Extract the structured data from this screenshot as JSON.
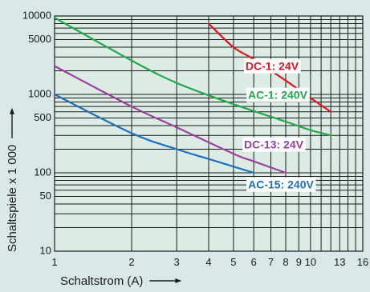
{
  "chart_data": {
    "type": "line",
    "xlabel": "Schaltstrom (A)",
    "ylabel": "Schaltspiele x 1 000",
    "xscale": "log",
    "yscale": "log",
    "xlim": [
      1,
      16
    ],
    "ylim": [
      10,
      10000
    ],
    "x_ticks": [
      {
        "value": 1,
        "label": "1"
      },
      {
        "value": 2,
        "label": "2"
      },
      {
        "value": 3,
        "label": "3"
      },
      {
        "value": 4,
        "label": "4"
      },
      {
        "value": 5,
        "label": "5"
      },
      {
        "value": 6,
        "label": "6"
      },
      {
        "value": 7,
        "label": "7"
      },
      {
        "value": 8,
        "label": "8"
      },
      {
        "value": 9,
        "label": "9"
      },
      {
        "value": 10,
        "label": "10"
      },
      {
        "value": 13,
        "label": "13"
      },
      {
        "value": 16,
        "label": "16"
      }
    ],
    "y_ticks": [
      {
        "value": 10,
        "label": "10"
      },
      {
        "value": 50,
        "label": "50"
      },
      {
        "value": 100,
        "label": "100"
      },
      {
        "value": 500,
        "label": "500"
      },
      {
        "value": 1000,
        "label": "1000"
      },
      {
        "value": 5000,
        "label": "5000"
      },
      {
        "value": 10000,
        "label": "10000"
      }
    ],
    "grid": true,
    "series": [
      {
        "name": "DC-1: 24V",
        "color": "#e0141e",
        "x": [
          4.0,
          5.0,
          6.0,
          8.0,
          10.0,
          12.0
        ],
        "y": [
          8000,
          4000,
          2800,
          1500,
          900,
          600
        ]
      },
      {
        "name": "AC-1: 240V",
        "color": "#1faa48",
        "x": [
          1.0,
          2.0,
          3.0,
          5.0,
          8.0,
          10.0,
          12.0
        ],
        "y": [
          9500,
          2700,
          1400,
          750,
          450,
          350,
          300
        ]
      },
      {
        "name": "DC-13: 24V",
        "color": "#9b3ea0",
        "x": [
          1.0,
          2.0,
          3.0,
          5.0,
          6.0,
          8.0
        ],
        "y": [
          2300,
          700,
          380,
          175,
          140,
          100
        ]
      },
      {
        "name": "AC-15: 240V",
        "color": "#1f6fbf",
        "x": [
          1.0,
          2.0,
          3.0,
          4.0,
          5.0,
          6.0
        ],
        "y": [
          1000,
          320,
          200,
          150,
          120,
          100
        ]
      }
    ]
  }
}
